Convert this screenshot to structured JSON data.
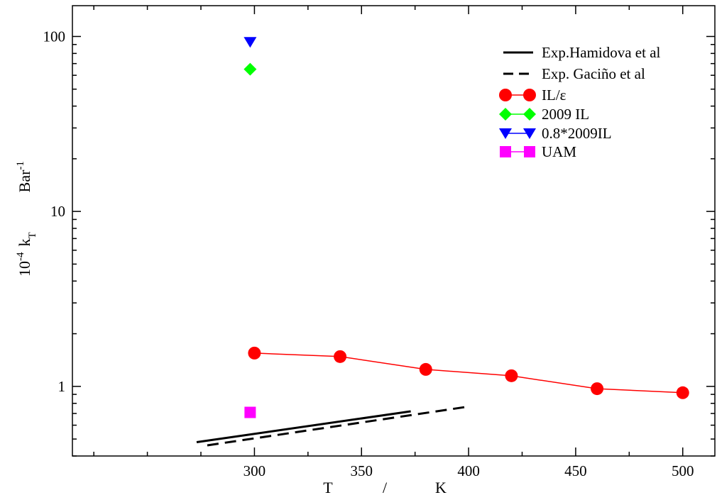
{
  "chart_data": {
    "type": "line",
    "xlabel": {
      "parts": [
        "T",
        "/",
        "K"
      ]
    },
    "ylabel": {
      "base": "10",
      "exp": "-4",
      "k": "k",
      "sub": "T",
      "unit": "Bar",
      "unit_exp": "-1"
    },
    "xlim": [
      215,
      515
    ],
    "ylim": [
      0.4,
      150
    ],
    "yscale": "log",
    "x_ticks": [
      300,
      350,
      400,
      450,
      500
    ],
    "x_tick_labels": [
      "300",
      "350",
      "400",
      "450",
      "500"
    ],
    "y_ticks": [
      1,
      10,
      100
    ],
    "y_tick_labels": [
      "1",
      "10",
      "100"
    ],
    "grid": false,
    "legend_position": "top-right",
    "series": [
      {
        "name": "Exp.Hamidova et al",
        "style": "solid",
        "color": "#000000",
        "marker": "none",
        "x": [
          273,
          373
        ],
        "y": [
          0.48,
          0.72
        ]
      },
      {
        "name": "Exp. Gaciño et al",
        "style": "dashed",
        "color": "#000000",
        "marker": "none",
        "x": [
          278,
          398
        ],
        "y": [
          0.46,
          0.76
        ]
      },
      {
        "name": "IL/ε",
        "style": "solid",
        "color": "#ff0000",
        "marker": "circle",
        "x": [
          300,
          340,
          380,
          420,
          460,
          500
        ],
        "y": [
          1.55,
          1.48,
          1.25,
          1.15,
          0.97,
          0.92
        ]
      },
      {
        "name": "2009 IL",
        "style": "solid",
        "color": "#00ff00",
        "marker": "diamond",
        "x": [
          298
        ],
        "y": [
          65
        ]
      },
      {
        "name": "0.8*2009IL",
        "style": "solid",
        "color": "#0000ff",
        "marker": "triangle-down",
        "x": [
          298
        ],
        "y": [
          93
        ]
      },
      {
        "name": "UAM",
        "style": "solid",
        "color": "#ff00ff",
        "marker": "square",
        "x": [
          298
        ],
        "y": [
          0.71
        ]
      }
    ]
  }
}
